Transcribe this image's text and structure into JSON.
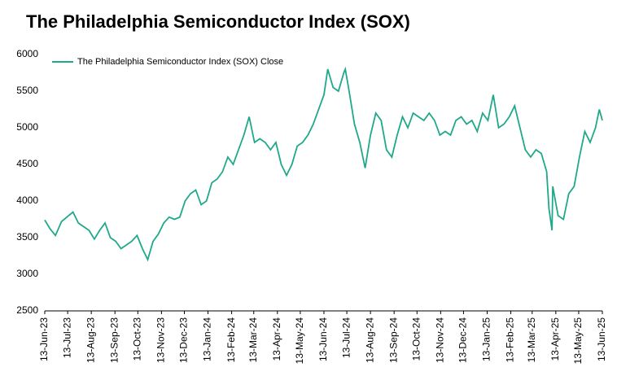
{
  "chart_data": {
    "type": "line",
    "title": "The Philadelphia Semiconductor Index (SOX)",
    "legend": "top-left",
    "xlim": [
      "2023-06-13",
      "2025-06-13"
    ],
    "xticks": [
      {
        "value": "2023-06-13",
        "label": "13-Jun-23"
      },
      {
        "value": "2023-07-13",
        "label": "13-Jul-23"
      },
      {
        "value": "2023-08-13",
        "label": "13-Aug-23"
      },
      {
        "value": "2023-09-13",
        "label": "13-Sep-23"
      },
      {
        "value": "2023-10-13",
        "label": "13-Oct-23"
      },
      {
        "value": "2023-11-13",
        "label": "13-Nov-23"
      },
      {
        "value": "2023-12-13",
        "label": "13-Dec-23"
      },
      {
        "value": "2024-01-13",
        "label": "13-Jan-24"
      },
      {
        "value": "2024-02-13",
        "label": "13-Feb-24"
      },
      {
        "value": "2024-03-13",
        "label": "13-Mar-24"
      },
      {
        "value": "2024-04-13",
        "label": "13-Apr-24"
      },
      {
        "value": "2024-05-13",
        "label": "13-May-24"
      },
      {
        "value": "2024-06-13",
        "label": "13-Jun-24"
      },
      {
        "value": "2024-07-13",
        "label": "13-Jul-24"
      },
      {
        "value": "2024-08-13",
        "label": "13-Aug-24"
      },
      {
        "value": "2024-09-13",
        "label": "13-Sep-24"
      },
      {
        "value": "2024-10-13",
        "label": "13-Oct-24"
      },
      {
        "value": "2024-11-13",
        "label": "13-Nov-24"
      },
      {
        "value": "2024-12-13",
        "label": "13-Dec-24"
      },
      {
        "value": "2025-01-13",
        "label": "13-Jan-25"
      },
      {
        "value": "2025-02-13",
        "label": "13-Feb-25"
      },
      {
        "value": "2025-03-13",
        "label": "13-Mar-25"
      },
      {
        "value": "2025-04-13",
        "label": "13-Apr-25"
      },
      {
        "value": "2025-05-13",
        "label": "13-May-25"
      },
      {
        "value": "2025-06-13",
        "label": "13-Jun-25"
      }
    ],
    "ylim": [
      2500,
      6000
    ],
    "yticks": [
      2500,
      3000,
      3500,
      4000,
      4500,
      5000,
      5500,
      6000
    ],
    "x": [
      "2023-06-13",
      "2023-06-20",
      "2023-06-27",
      "2023-07-05",
      "2023-07-13",
      "2023-07-20",
      "2023-07-27",
      "2023-08-03",
      "2023-08-10",
      "2023-08-17",
      "2023-08-24",
      "2023-08-31",
      "2023-09-07",
      "2023-09-14",
      "2023-09-21",
      "2023-09-28",
      "2023-10-05",
      "2023-10-12",
      "2023-10-19",
      "2023-10-26",
      "2023-11-02",
      "2023-11-09",
      "2023-11-16",
      "2023-11-23",
      "2023-11-30",
      "2023-12-07",
      "2023-12-14",
      "2023-12-21",
      "2023-12-28",
      "2024-01-04",
      "2024-01-11",
      "2024-01-18",
      "2024-01-25",
      "2024-02-01",
      "2024-02-08",
      "2024-02-15",
      "2024-02-22",
      "2024-02-29",
      "2024-03-07",
      "2024-03-14",
      "2024-03-21",
      "2024-03-28",
      "2024-04-04",
      "2024-04-11",
      "2024-04-18",
      "2024-04-25",
      "2024-05-02",
      "2024-05-09",
      "2024-05-16",
      "2024-05-23",
      "2024-05-30",
      "2024-06-06",
      "2024-06-13",
      "2024-06-18",
      "2024-06-25",
      "2024-07-02",
      "2024-07-09",
      "2024-07-11",
      "2024-07-16",
      "2024-07-23",
      "2024-07-30",
      "2024-08-06",
      "2024-08-13",
      "2024-08-20",
      "2024-08-27",
      "2024-09-03",
      "2024-09-10",
      "2024-09-17",
      "2024-09-24",
      "2024-10-01",
      "2024-10-08",
      "2024-10-15",
      "2024-10-22",
      "2024-10-29",
      "2024-11-05",
      "2024-11-12",
      "2024-11-19",
      "2024-11-26",
      "2024-12-03",
      "2024-12-10",
      "2024-12-17",
      "2024-12-24",
      "2024-12-31",
      "2025-01-07",
      "2025-01-14",
      "2025-01-21",
      "2025-01-28",
      "2025-02-04",
      "2025-02-11",
      "2025-02-18",
      "2025-02-25",
      "2025-03-04",
      "2025-03-11",
      "2025-03-18",
      "2025-03-25",
      "2025-04-01",
      "2025-04-04",
      "2025-04-08",
      "2025-04-09",
      "2025-04-16",
      "2025-04-23",
      "2025-04-30",
      "2025-05-07",
      "2025-05-14",
      "2025-05-21",
      "2025-05-28",
      "2025-06-04",
      "2025-06-09",
      "2025-06-13"
    ],
    "series": [
      {
        "name": "The Philadelphia Semiconductor Index (SOX) Close",
        "color": "#1fa88a",
        "values": [
          3740,
          3620,
          3530,
          3720,
          3790,
          3850,
          3700,
          3650,
          3600,
          3480,
          3600,
          3700,
          3500,
          3450,
          3350,
          3400,
          3450,
          3530,
          3350,
          3200,
          3450,
          3550,
          3700,
          3780,
          3750,
          3780,
          4000,
          4100,
          4150,
          3950,
          4000,
          4250,
          4300,
          4400,
          4600,
          4500,
          4700,
          4900,
          5150,
          4800,
          4850,
          4800,
          4700,
          4800,
          4500,
          4350,
          4500,
          4750,
          4800,
          4900,
          5050,
          5250,
          5450,
          5800,
          5550,
          5500,
          5750,
          5800,
          5500,
          5050,
          4800,
          4450,
          4900,
          5200,
          5100,
          4700,
          4600,
          4900,
          5150,
          5000,
          5200,
          5150,
          5100,
          5200,
          5100,
          4900,
          4950,
          4900,
          5100,
          5150,
          5050,
          5100,
          4950,
          5200,
          5100,
          5450,
          5000,
          5050,
          5150,
          5300,
          5000,
          4700,
          4600,
          4700,
          4650,
          4400,
          3900,
          3600,
          4200,
          3800,
          3750,
          4100,
          4200,
          4600,
          4950,
          4800,
          5000,
          5250,
          5100
        ]
      }
    ]
  }
}
